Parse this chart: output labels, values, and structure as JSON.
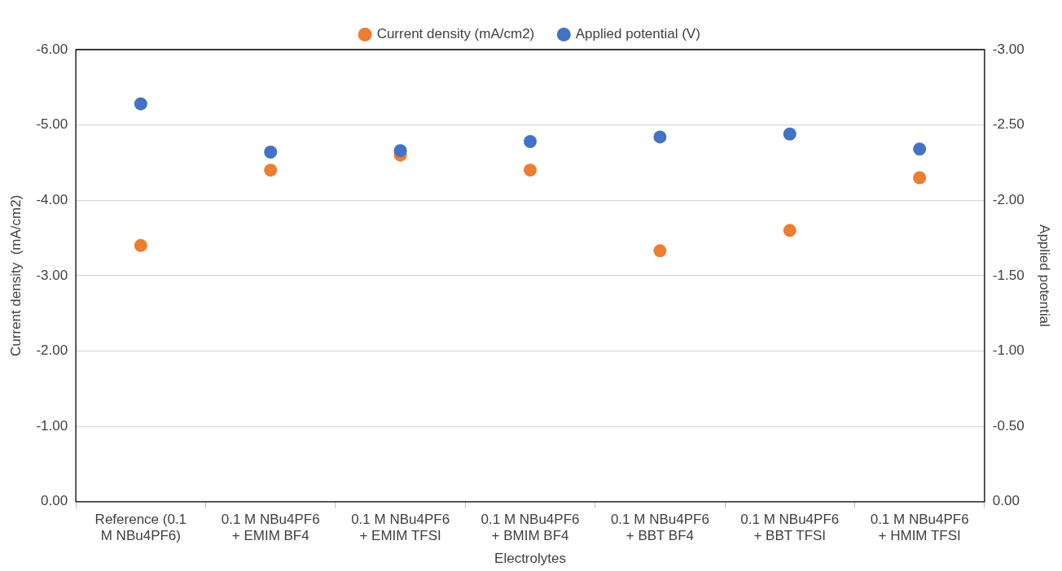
{
  "chart_data": {
    "type": "scatter",
    "xlabel": "Electrolytes",
    "ylabel": "Current density  (mA/cm2)",
    "y2label": "Applied potential",
    "categories": [
      "Reference (0.1 M NBu4PF6)",
      "0.1 M NBu4PF6 + EMIM BF4",
      "0.1 M NBu4PF6 + EMIM TFSI",
      "0.1 M NBu4PF6 + BMIM BF4",
      "0.1 M NBu4PF6 + BBT BF4",
      "0.1 M NBu4PF6 + BBT TFSI",
      "0.1 M NBu4PF6 + HMIM TFSI"
    ],
    "series": [
      {
        "name": "Current density (mA/cm2)",
        "color": "#ed7d31",
        "values": [
          -3.4,
          -4.4,
          -4.6,
          -4.4,
          -3.33,
          -3.6,
          -4.3
        ]
      },
      {
        "name": "Applied potential (V)",
        "color": "#4472c4",
        "axis": "y2",
        "values": [
          -2.64,
          -2.32,
          -2.33,
          -2.39,
          -2.42,
          -2.44,
          -2.34
        ]
      }
    ],
    "ylim": [
      0,
      -6
    ],
    "yticks": [
      {
        "value": 0,
        "label": "0.00"
      },
      {
        "value": -1,
        "label": "-1.00"
      },
      {
        "value": -2,
        "label": "-2.00"
      },
      {
        "value": -3,
        "label": "-3.00"
      },
      {
        "value": -4,
        "label": "-4.00"
      },
      {
        "value": -5,
        "label": "-5.00"
      },
      {
        "value": -6,
        "label": "-6.00"
      }
    ],
    "y2lim": [
      0,
      -3
    ],
    "y2ticks": [
      {
        "value": 0,
        "label": "0.00"
      },
      {
        "value": -0.5,
        "label": "-0.50"
      },
      {
        "value": -1,
        "label": "-1.00"
      },
      {
        "value": -1.5,
        "label": "-1.50"
      },
      {
        "value": -2,
        "label": "-2.00"
      },
      {
        "value": -2.5,
        "label": "-2.50"
      },
      {
        "value": -3,
        "label": "-3.00"
      }
    ],
    "grid": "y",
    "legend": "top",
    "marker": "circle"
  }
}
